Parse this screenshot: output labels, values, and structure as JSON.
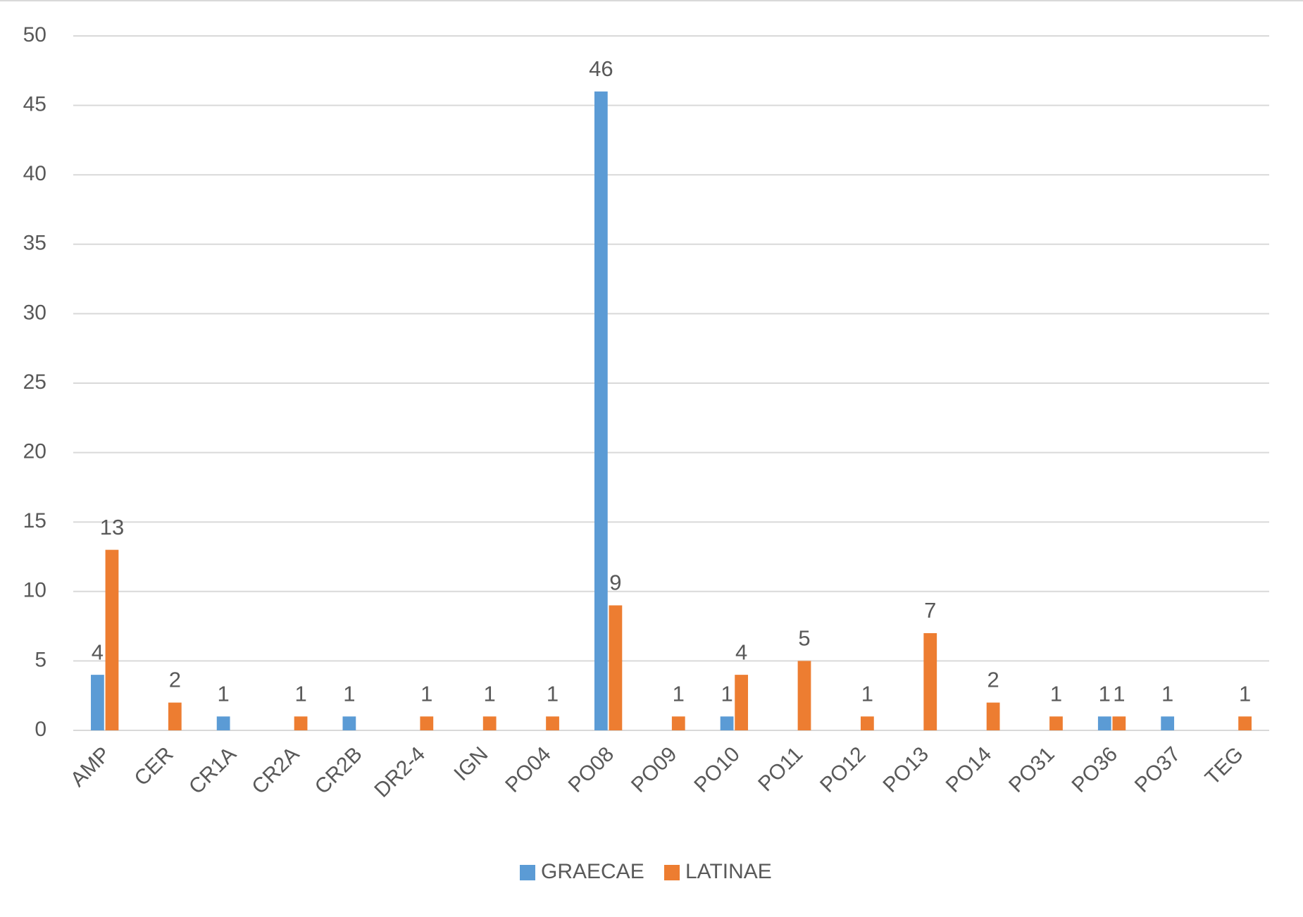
{
  "chart_data": {
    "type": "bar",
    "categories": [
      "AMP",
      "CER",
      "CR1A",
      "CR2A",
      "CR2B",
      "DR2-4",
      "IGN",
      "PO04",
      "PO08",
      "PO09",
      "PO10",
      "PO11",
      "PO12",
      "PO13",
      "PO14",
      "PO31",
      "PO36",
      "PO37",
      "TEG"
    ],
    "series": [
      {
        "name": "GRAECAE",
        "color": "#5b9bd5",
        "values": [
          4,
          null,
          1,
          null,
          1,
          null,
          null,
          null,
          46,
          null,
          1,
          null,
          null,
          null,
          null,
          null,
          1,
          1,
          null
        ]
      },
      {
        "name": "LATINAE",
        "color": "#ed7d31",
        "values": [
          13,
          2,
          null,
          1,
          null,
          1,
          1,
          1,
          9,
          1,
          4,
          5,
          1,
          7,
          2,
          1,
          1,
          null,
          1
        ]
      }
    ],
    "ylim": [
      0,
      50
    ],
    "yticks": [
      0,
      5,
      10,
      15,
      20,
      25,
      30,
      35,
      40,
      45,
      50
    ],
    "grid": true,
    "legend": "bottom"
  }
}
